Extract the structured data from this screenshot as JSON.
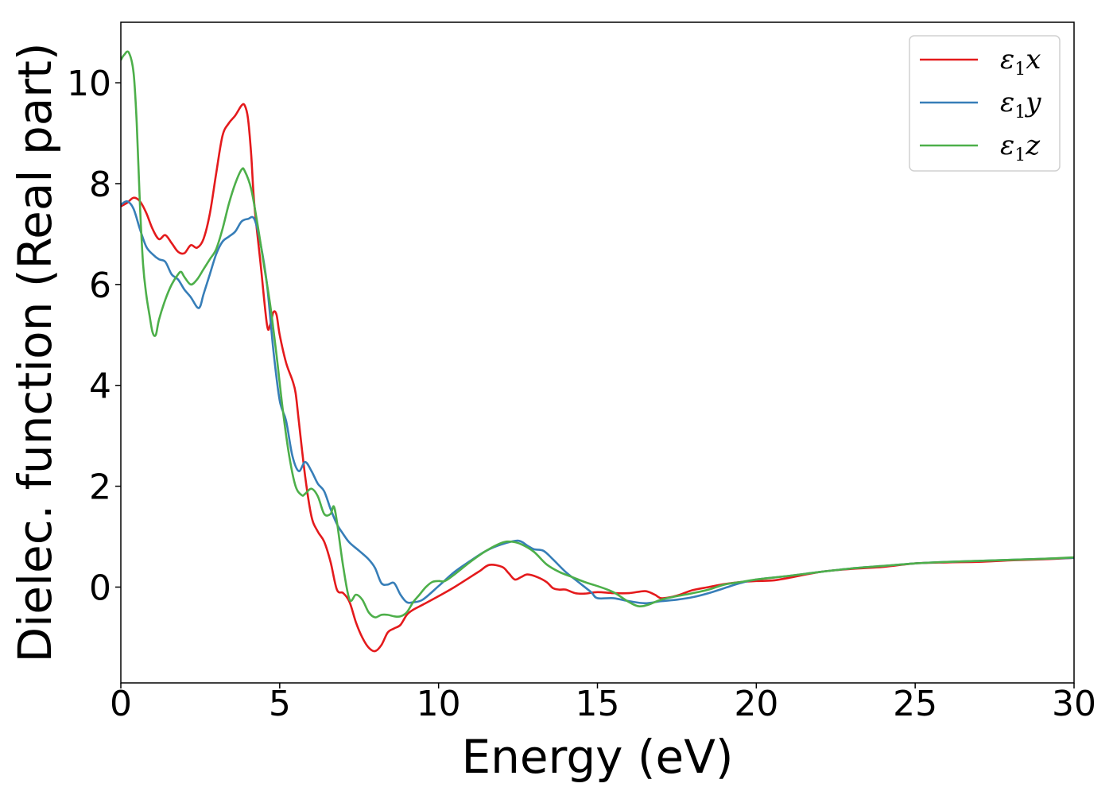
{
  "chart_data": {
    "type": "line",
    "xlabel": "Energy (eV)",
    "ylabel": "Dielec. function (Real part)",
    "xlim": [
      0,
      30
    ],
    "ylim": [
      -1.9,
      11.2
    ],
    "xticks": [
      0,
      5,
      10,
      15,
      20,
      25,
      30
    ],
    "xtick_labels": [
      "0",
      "5",
      "10",
      "15",
      "20",
      "25",
      "30"
    ],
    "yticks": [
      0,
      2,
      4,
      6,
      8,
      10
    ],
    "ytick_labels": [
      "0",
      "2",
      "4",
      "6",
      "8",
      "10"
    ],
    "grid": false,
    "legend_position": "top-right",
    "series": [
      {
        "name": "ε1x",
        "legend_base": "ε",
        "legend_sub": "1",
        "legend_var": "x",
        "color": "#e41a1c",
        "points": [
          [
            0,
            7.55
          ],
          [
            0.2,
            7.62
          ],
          [
            0.4,
            7.72
          ],
          [
            0.6,
            7.65
          ],
          [
            0.8,
            7.42
          ],
          [
            1.0,
            7.1
          ],
          [
            1.2,
            6.9
          ],
          [
            1.4,
            6.98
          ],
          [
            1.6,
            6.82
          ],
          [
            1.8,
            6.65
          ],
          [
            2.0,
            6.62
          ],
          [
            2.2,
            6.78
          ],
          [
            2.4,
            6.73
          ],
          [
            2.6,
            6.9
          ],
          [
            2.8,
            7.4
          ],
          [
            3.0,
            8.2
          ],
          [
            3.2,
            8.95
          ],
          [
            3.4,
            9.2
          ],
          [
            3.6,
            9.35
          ],
          [
            3.8,
            9.55
          ],
          [
            3.9,
            9.55
          ],
          [
            4.0,
            9.3
          ],
          [
            4.1,
            8.6
          ],
          [
            4.2,
            7.6
          ],
          [
            4.4,
            6.4
          ],
          [
            4.6,
            5.2
          ],
          [
            4.7,
            5.2
          ],
          [
            4.8,
            5.45
          ],
          [
            4.9,
            5.4
          ],
          [
            5.0,
            5.0
          ],
          [
            5.2,
            4.45
          ],
          [
            5.4,
            4.1
          ],
          [
            5.5,
            3.85
          ],
          [
            5.6,
            3.3
          ],
          [
            5.8,
            2.2
          ],
          [
            6.0,
            1.4
          ],
          [
            6.2,
            1.1
          ],
          [
            6.4,
            0.9
          ],
          [
            6.6,
            0.5
          ],
          [
            6.8,
            -0.05
          ],
          [
            7.0,
            -0.12
          ],
          [
            7.2,
            -0.3
          ],
          [
            7.4,
            -0.7
          ],
          [
            7.6,
            -1.0
          ],
          [
            7.8,
            -1.2
          ],
          [
            8.0,
            -1.27
          ],
          [
            8.2,
            -1.15
          ],
          [
            8.4,
            -0.9
          ],
          [
            8.6,
            -0.82
          ],
          [
            8.8,
            -0.75
          ],
          [
            9.0,
            -0.55
          ],
          [
            9.2,
            -0.45
          ],
          [
            9.5,
            -0.35
          ],
          [
            10.0,
            -0.18
          ],
          [
            10.5,
            0.0
          ],
          [
            11.0,
            0.2
          ],
          [
            11.3,
            0.32
          ],
          [
            11.6,
            0.44
          ],
          [
            12.0,
            0.4
          ],
          [
            12.2,
            0.28
          ],
          [
            12.4,
            0.15
          ],
          [
            12.6,
            0.2
          ],
          [
            12.8,
            0.25
          ],
          [
            13.1,
            0.2
          ],
          [
            13.4,
            0.1
          ],
          [
            13.6,
            -0.02
          ],
          [
            13.8,
            -0.05
          ],
          [
            14.0,
            -0.05
          ],
          [
            14.3,
            -0.12
          ],
          [
            14.6,
            -0.13
          ],
          [
            15.0,
            -0.1
          ],
          [
            15.5,
            -0.12
          ],
          [
            16.0,
            -0.12
          ],
          [
            16.5,
            -0.08
          ],
          [
            16.8,
            -0.15
          ],
          [
            17.0,
            -0.22
          ],
          [
            17.3,
            -0.2
          ],
          [
            17.6,
            -0.15
          ],
          [
            18.0,
            -0.06
          ],
          [
            18.5,
            0.0
          ],
          [
            19.0,
            0.06
          ],
          [
            19.5,
            0.1
          ],
          [
            20.0,
            0.12
          ],
          [
            20.5,
            0.13
          ],
          [
            21.0,
            0.18
          ],
          [
            22.0,
            0.3
          ],
          [
            23.0,
            0.36
          ],
          [
            24.0,
            0.4
          ],
          [
            25.0,
            0.47
          ],
          [
            26.0,
            0.49
          ],
          [
            27.0,
            0.5
          ],
          [
            28.0,
            0.53
          ],
          [
            29.0,
            0.55
          ],
          [
            30.0,
            0.58
          ]
        ]
      },
      {
        "name": "ε1y",
        "legend_base": "ε",
        "legend_sub": "1",
        "legend_var": "y",
        "color": "#377eb8",
        "points": [
          [
            0,
            7.58
          ],
          [
            0.2,
            7.65
          ],
          [
            0.4,
            7.5
          ],
          [
            0.6,
            7.1
          ],
          [
            0.8,
            6.75
          ],
          [
            1.0,
            6.6
          ],
          [
            1.2,
            6.5
          ],
          [
            1.4,
            6.45
          ],
          [
            1.6,
            6.2
          ],
          [
            1.8,
            6.1
          ],
          [
            2.0,
            5.9
          ],
          [
            2.2,
            5.75
          ],
          [
            2.4,
            5.55
          ],
          [
            2.5,
            5.57
          ],
          [
            2.6,
            5.8
          ],
          [
            2.8,
            6.2
          ],
          [
            3.0,
            6.6
          ],
          [
            3.2,
            6.85
          ],
          [
            3.4,
            6.95
          ],
          [
            3.6,
            7.05
          ],
          [
            3.8,
            7.25
          ],
          [
            4.0,
            7.3
          ],
          [
            4.2,
            7.3
          ],
          [
            4.4,
            6.8
          ],
          [
            4.6,
            6.0
          ],
          [
            4.8,
            4.7
          ],
          [
            5.0,
            3.7
          ],
          [
            5.2,
            3.3
          ],
          [
            5.4,
            2.6
          ],
          [
            5.6,
            2.3
          ],
          [
            5.8,
            2.48
          ],
          [
            6.0,
            2.3
          ],
          [
            6.2,
            2.05
          ],
          [
            6.4,
            1.9
          ],
          [
            6.6,
            1.55
          ],
          [
            6.8,
            1.25
          ],
          [
            7.0,
            1.05
          ],
          [
            7.2,
            0.88
          ],
          [
            7.5,
            0.72
          ],
          [
            7.8,
            0.55
          ],
          [
            8.0,
            0.38
          ],
          [
            8.2,
            0.08
          ],
          [
            8.4,
            0.05
          ],
          [
            8.6,
            0.08
          ],
          [
            8.8,
            -0.15
          ],
          [
            9.0,
            -0.3
          ],
          [
            9.2,
            -0.3
          ],
          [
            9.5,
            -0.25
          ],
          [
            10.0,
            0.02
          ],
          [
            10.5,
            0.3
          ],
          [
            11.0,
            0.52
          ],
          [
            11.5,
            0.72
          ],
          [
            12.0,
            0.85
          ],
          [
            12.5,
            0.92
          ],
          [
            12.8,
            0.82
          ],
          [
            13.0,
            0.75
          ],
          [
            13.3,
            0.72
          ],
          [
            13.6,
            0.55
          ],
          [
            14.0,
            0.3
          ],
          [
            14.4,
            0.1
          ],
          [
            14.8,
            -0.1
          ],
          [
            15.0,
            -0.22
          ],
          [
            15.5,
            -0.22
          ],
          [
            16.0,
            -0.28
          ],
          [
            16.5,
            -0.32
          ],
          [
            17.0,
            -0.28
          ],
          [
            17.5,
            -0.25
          ],
          [
            18.0,
            -0.2
          ],
          [
            18.5,
            -0.12
          ],
          [
            19.0,
            -0.02
          ],
          [
            19.5,
            0.08
          ],
          [
            20.0,
            0.15
          ],
          [
            21.0,
            0.22
          ],
          [
            22.0,
            0.3
          ],
          [
            23.0,
            0.37
          ],
          [
            24.0,
            0.42
          ],
          [
            25.0,
            0.47
          ],
          [
            26.0,
            0.5
          ],
          [
            27.0,
            0.52
          ],
          [
            28.0,
            0.54
          ],
          [
            29.0,
            0.56
          ],
          [
            30.0,
            0.58
          ]
        ]
      },
      {
        "name": "ε1z",
        "legend_base": "ε",
        "legend_sub": "1",
        "legend_var": "z",
        "color": "#4daf4a",
        "points": [
          [
            0,
            10.45
          ],
          [
            0.1,
            10.55
          ],
          [
            0.25,
            10.6
          ],
          [
            0.4,
            10.2
          ],
          [
            0.5,
            9.2
          ],
          [
            0.6,
            7.6
          ],
          [
            0.7,
            6.4
          ],
          [
            0.8,
            5.8
          ],
          [
            0.9,
            5.4
          ],
          [
            1.0,
            5.05
          ],
          [
            1.1,
            5.0
          ],
          [
            1.2,
            5.3
          ],
          [
            1.4,
            5.7
          ],
          [
            1.6,
            6.0
          ],
          [
            1.8,
            6.2
          ],
          [
            1.9,
            6.25
          ],
          [
            2.0,
            6.15
          ],
          [
            2.2,
            6.0
          ],
          [
            2.4,
            6.1
          ],
          [
            2.6,
            6.3
          ],
          [
            2.8,
            6.5
          ],
          [
            3.0,
            6.7
          ],
          [
            3.2,
            7.1
          ],
          [
            3.4,
            7.6
          ],
          [
            3.6,
            8.0
          ],
          [
            3.8,
            8.28
          ],
          [
            3.9,
            8.25
          ],
          [
            4.1,
            7.9
          ],
          [
            4.3,
            7.2
          ],
          [
            4.5,
            6.4
          ],
          [
            4.7,
            5.6
          ],
          [
            4.9,
            4.6
          ],
          [
            5.1,
            3.5
          ],
          [
            5.3,
            2.6
          ],
          [
            5.5,
            2.0
          ],
          [
            5.7,
            1.82
          ],
          [
            5.8,
            1.85
          ],
          [
            6.0,
            1.95
          ],
          [
            6.2,
            1.8
          ],
          [
            6.4,
            1.45
          ],
          [
            6.6,
            1.45
          ],
          [
            6.7,
            1.6
          ],
          [
            6.8,
            1.3
          ],
          [
            7.0,
            0.4
          ],
          [
            7.2,
            -0.25
          ],
          [
            7.4,
            -0.15
          ],
          [
            7.6,
            -0.25
          ],
          [
            7.8,
            -0.5
          ],
          [
            8.0,
            -0.6
          ],
          [
            8.2,
            -0.55
          ],
          [
            8.4,
            -0.55
          ],
          [
            8.6,
            -0.58
          ],
          [
            8.8,
            -0.58
          ],
          [
            9.0,
            -0.5
          ],
          [
            9.2,
            -0.3
          ],
          [
            9.4,
            -0.15
          ],
          [
            9.6,
            0.0
          ],
          [
            9.8,
            0.1
          ],
          [
            10.0,
            0.12
          ],
          [
            10.2,
            0.12
          ],
          [
            10.5,
            0.25
          ],
          [
            11.0,
            0.5
          ],
          [
            11.5,
            0.72
          ],
          [
            12.0,
            0.88
          ],
          [
            12.3,
            0.9
          ],
          [
            12.6,
            0.85
          ],
          [
            13.0,
            0.7
          ],
          [
            13.4,
            0.45
          ],
          [
            13.8,
            0.3
          ],
          [
            14.2,
            0.2
          ],
          [
            14.6,
            0.1
          ],
          [
            15.0,
            0.02
          ],
          [
            15.5,
            -0.1
          ],
          [
            16.0,
            -0.3
          ],
          [
            16.3,
            -0.38
          ],
          [
            16.6,
            -0.35
          ],
          [
            17.0,
            -0.25
          ],
          [
            17.5,
            -0.18
          ],
          [
            18.0,
            -0.12
          ],
          [
            18.5,
            -0.05
          ],
          [
            19.0,
            0.05
          ],
          [
            19.5,
            0.1
          ],
          [
            20.0,
            0.15
          ],
          [
            21.0,
            0.22
          ],
          [
            22.0,
            0.3
          ],
          [
            23.0,
            0.37
          ],
          [
            24.0,
            0.42
          ],
          [
            25.0,
            0.47
          ],
          [
            26.0,
            0.5
          ],
          [
            27.0,
            0.52
          ],
          [
            28.0,
            0.54
          ],
          [
            29.0,
            0.56
          ],
          [
            30.0,
            0.59
          ]
        ]
      }
    ]
  }
}
